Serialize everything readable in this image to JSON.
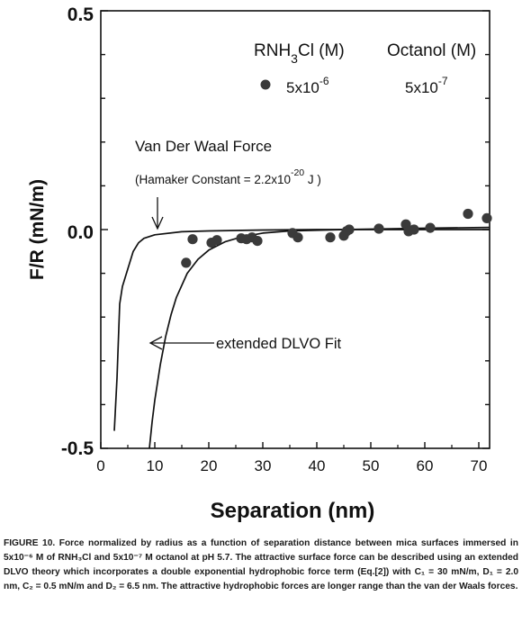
{
  "chart_data": {
    "type": "scatter",
    "title": "",
    "xlabel": "Separation (nm)",
    "ylabel": "F/R (mN/m)",
    "xlim": [
      0,
      72
    ],
    "ylim": [
      -0.5,
      0.5
    ],
    "xticks": [
      "0",
      "10",
      "20",
      "30",
      "40",
      "50",
      "60",
      "70"
    ],
    "yticks": [
      "0.5",
      "0.0",
      "-0.5"
    ],
    "legend": {
      "col1": {
        "prefix": "RNH",
        "sub": "3",
        "suffix": "Cl (M)"
      },
      "col2": "Octanol (M)",
      "row_conc1": {
        "base": "5x10",
        "exp": "-6"
      },
      "row_conc2": {
        "base": "5x10",
        "exp": "-7"
      }
    },
    "series": [
      {
        "values_x": [
          15.8,
          17.0,
          20.5,
          21.5,
          26.0,
          27.0,
          28.0,
          29.0,
          35.5,
          36.5,
          42.5,
          45.0,
          45.5,
          46.0,
          51.5,
          56.5,
          57.0,
          58.0,
          61.0,
          68.0,
          71.5
        ],
        "values_y": [
          -0.076,
          -0.022,
          -0.03,
          -0.024,
          -0.02,
          -0.022,
          -0.018,
          -0.026,
          -0.008,
          -0.018,
          -0.018,
          -0.014,
          -0.004,
          0.0,
          0.002,
          0.012,
          -0.004,
          0.0,
          0.004,
          0.036,
          0.026
        ]
      }
    ],
    "curves": [
      {
        "name": "Van Der Waal Force",
        "x": [
          2.5,
          3,
          3.5,
          4,
          5,
          6,
          7,
          8,
          10,
          15,
          20,
          30,
          40,
          55,
          72
        ],
        "y": [
          -0.46,
          -0.34,
          -0.17,
          -0.13,
          -0.09,
          -0.05,
          -0.03,
          -0.02,
          -0.012,
          -0.005,
          -0.003,
          -0.001,
          0.0,
          0.0,
          0.0
        ]
      },
      {
        "name": "extended DLVO Fit",
        "x": [
          9.0,
          9.5,
          10,
          11,
          12,
          13,
          14,
          16,
          18,
          20,
          23,
          26,
          30,
          35,
          45,
          60,
          72
        ],
        "y": [
          -0.5,
          -0.44,
          -0.39,
          -0.31,
          -0.245,
          -0.195,
          -0.155,
          -0.1,
          -0.068,
          -0.047,
          -0.028,
          -0.017,
          -0.008,
          -0.003,
          0.0,
          0.003,
          0.005
        ]
      }
    ],
    "annotations": {
      "vdw_title": "Van Der Waal Force",
      "vdw_hamaker": {
        "prefix": "(Hamaker Constant = 2.2x10",
        "exp": "-20",
        "suffix": " J )"
      },
      "dlvo_label": "extended DLVO Fit"
    }
  },
  "caption": "FIGURE 10.  Force normalized by radius as a function of separation distance between mica surfaces immersed in 5x10⁻⁶ M of RNH₃Cl and 5x10⁻⁷ M octanol at pH 5.7.  The attractive surface force can be described using an extended DLVO theory which incorporates a double exponential hydrophobic force term (Eq.[2]) with C₁ = 30 mN/m, D₁ = 2.0 nm, C₂ = 0.5 mN/m and D₂ = 6.5 nm.  The attractive hydrophobic forces are longer range than the van der Waals forces."
}
